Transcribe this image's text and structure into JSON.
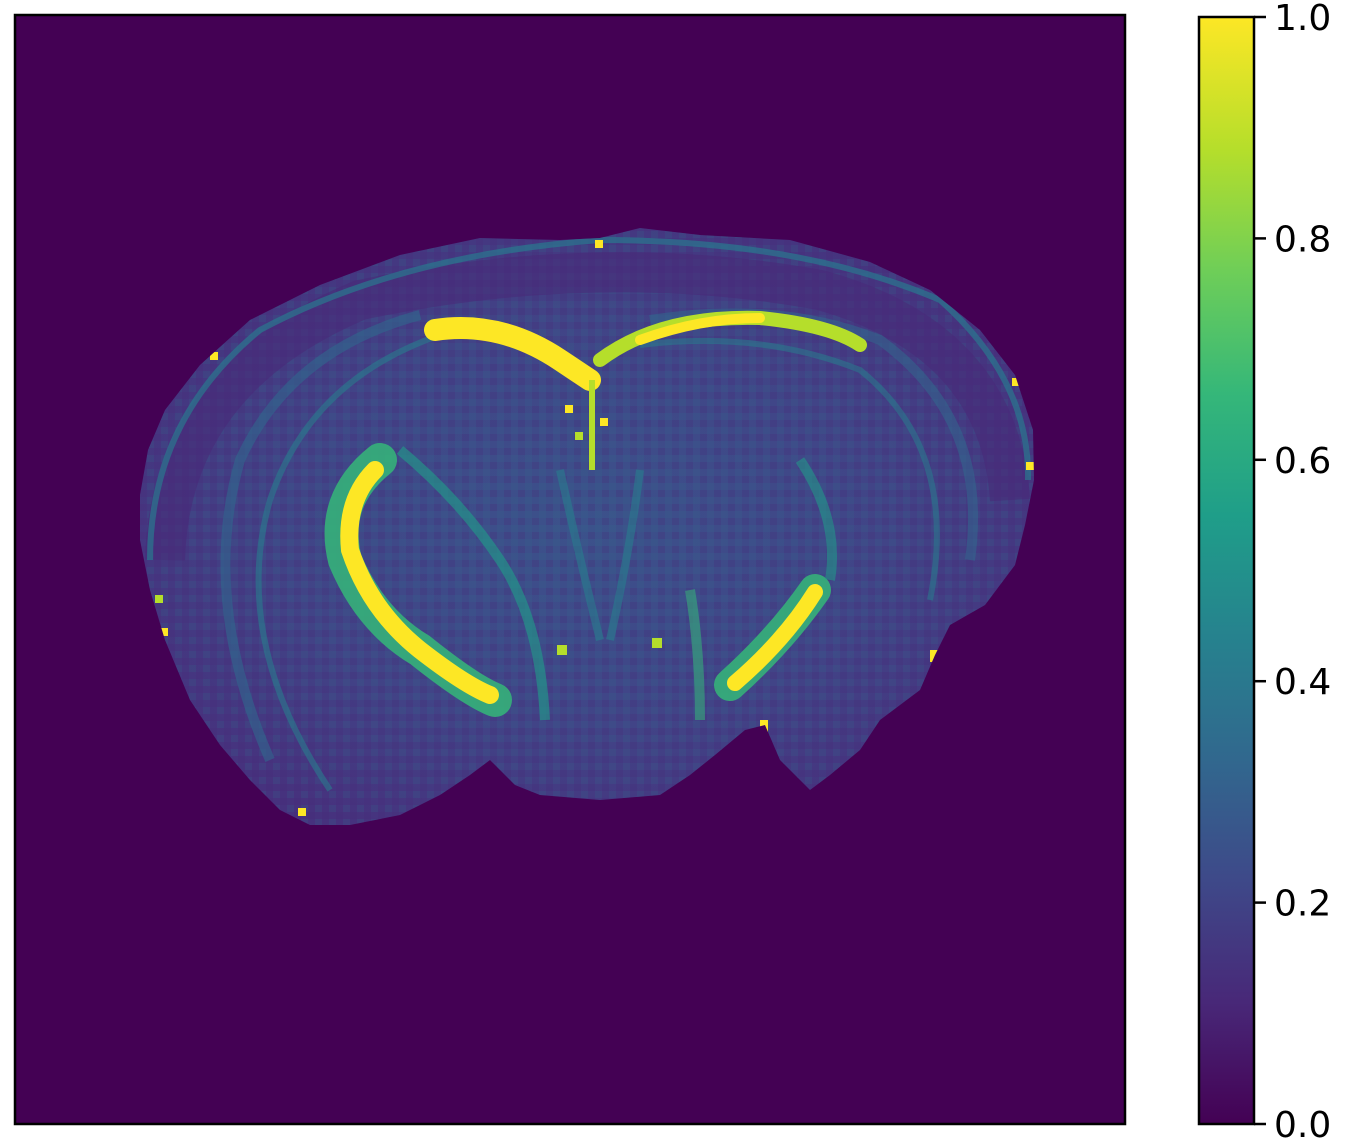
{
  "image": {
    "subject": "brain-slice-heatmap",
    "colormap": "viridis",
    "background_value": 0.0
  },
  "colorbar": {
    "min": 0.0,
    "max": 1.0,
    "ticks": [
      {
        "value": 0.0,
        "label": "0.0"
      },
      {
        "value": 0.2,
        "label": "0.2"
      },
      {
        "value": 0.4,
        "label": "0.4"
      },
      {
        "value": 0.6,
        "label": "0.6"
      },
      {
        "value": 0.8,
        "label": "0.8"
      },
      {
        "value": 1.0,
        "label": "1.0"
      }
    ]
  },
  "colors": {
    "viridis_stops": [
      "#440154",
      "#482878",
      "#3e4989",
      "#31688e",
      "#26828e",
      "#1f9e89",
      "#35b779",
      "#6ece58",
      "#b5de2b",
      "#fde725"
    ]
  }
}
